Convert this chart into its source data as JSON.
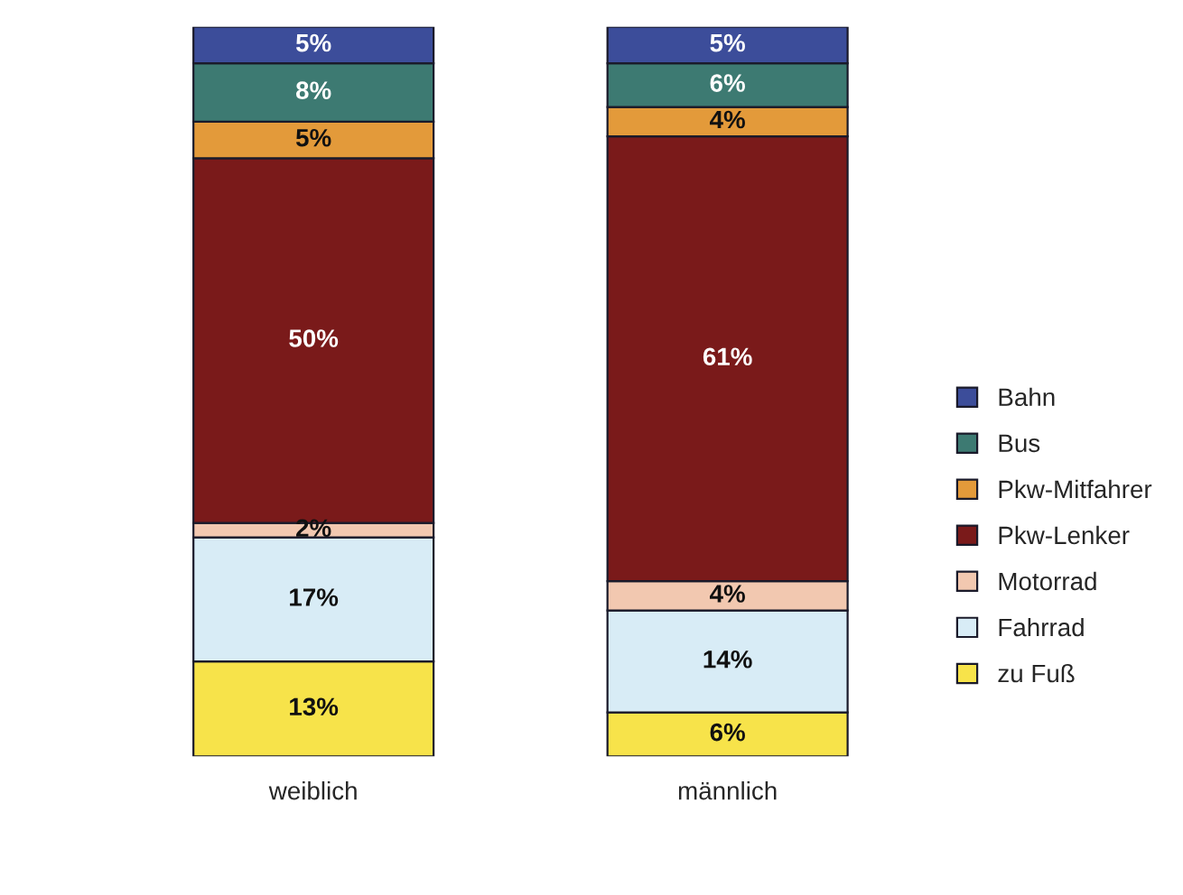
{
  "chart_data": {
    "type": "bar",
    "stacked": true,
    "categories": [
      "weiblich",
      "männlich"
    ],
    "legend": "right",
    "series": [
      {
        "name": "zu Fuß",
        "color": "#f7e34a",
        "values": [
          13,
          6
        ],
        "value_labels": [
          "13%",
          "6%"
        ]
      },
      {
        "name": "Fahrrad",
        "color": "#d8ecf6",
        "values": [
          17,
          14
        ],
        "value_labels": [
          "17%",
          "14%"
        ]
      },
      {
        "name": "Motorrad",
        "color": "#f2c8b0",
        "values": [
          2,
          4
        ],
        "value_labels": [
          "2%",
          "4%"
        ]
      },
      {
        "name": "Pkw-Lenker",
        "color": "#7a1a1a",
        "values": [
          50,
          61
        ],
        "value_labels": [
          "50%",
          "61%"
        ]
      },
      {
        "name": "Pkw-Mitfahrer",
        "color": "#e39a3a",
        "values": [
          5,
          4
        ],
        "value_labels": [
          "5%",
          "4%"
        ]
      },
      {
        "name": "Bus",
        "color": "#3d7a72",
        "values": [
          8,
          6
        ],
        "value_labels": [
          "8%",
          "6%"
        ]
      },
      {
        "name": "Bahn",
        "color": "#3c4d9a",
        "values": [
          5,
          5
        ],
        "value_labels": [
          "5%",
          "5%"
        ]
      }
    ]
  }
}
